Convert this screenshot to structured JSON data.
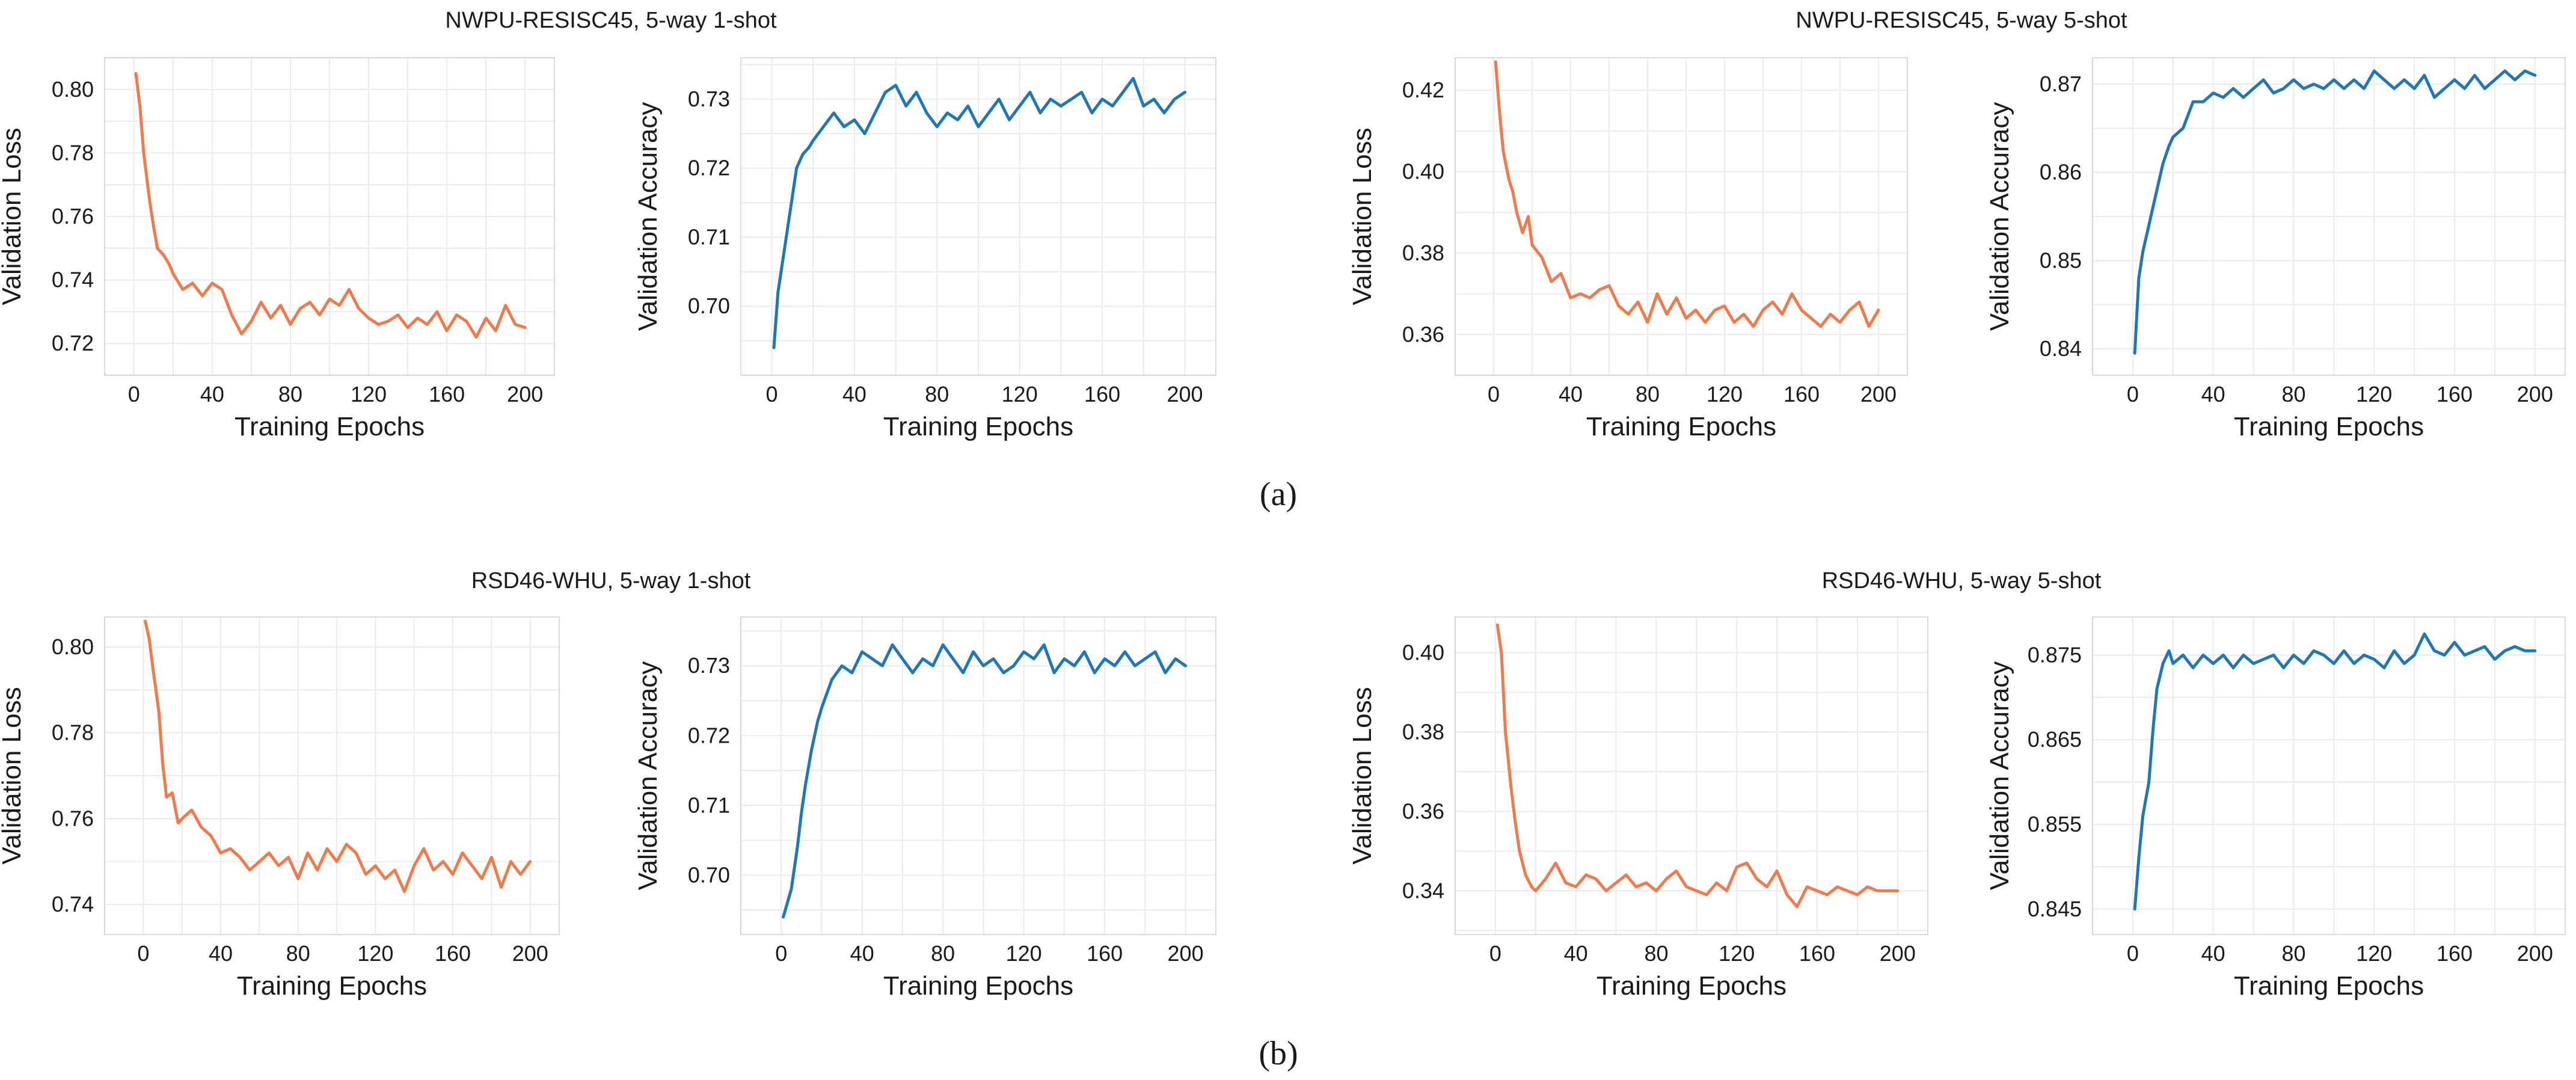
{
  "colors": {
    "loss": "#f07a4b",
    "accuracy": "#1f77b4",
    "grid": "#ebebeb"
  },
  "groups": [
    {
      "title": "NWPU-RESISC45, 5-way 1-shot"
    },
    {
      "title": "NWPU-RESISC45, 5-way 5-shot"
    },
    {
      "title": "RSD46-WHU, 5-way 1-shot"
    },
    {
      "title": "RSD46-WHU, 5-way 5-shot"
    }
  ],
  "captions": [
    "(a)",
    "(b)"
  ],
  "chart_data": [
    {
      "type": "line",
      "group": 0,
      "series_kind": "loss",
      "title": "",
      "xlabel": "Training Epochs",
      "ylabel": "Validation Loss",
      "xlim": [
        -15,
        215
      ],
      "ylim": [
        0.71,
        0.81
      ],
      "xticks": [
        0,
        40,
        80,
        120,
        160,
        200
      ],
      "xtick_labels": [
        "0",
        "40",
        "80",
        "120",
        "160",
        "200"
      ],
      "yticks": [
        0.72,
        0.74,
        0.76,
        0.78,
        0.8
      ],
      "ytick_labels": [
        "0.72",
        "0.74",
        "0.76",
        "0.78",
        "0.80"
      ],
      "x": [
        1,
        3,
        5,
        8,
        10,
        12,
        15,
        18,
        20,
        25,
        30,
        35,
        40,
        45,
        50,
        55,
        60,
        65,
        70,
        75,
        80,
        85,
        90,
        95,
        100,
        105,
        110,
        115,
        120,
        125,
        130,
        135,
        140,
        145,
        150,
        155,
        160,
        165,
        170,
        175,
        180,
        185,
        190,
        195,
        200
      ],
      "y": [
        0.805,
        0.795,
        0.78,
        0.765,
        0.757,
        0.75,
        0.748,
        0.745,
        0.742,
        0.737,
        0.739,
        0.735,
        0.739,
        0.737,
        0.729,
        0.723,
        0.727,
        0.733,
        0.728,
        0.732,
        0.726,
        0.731,
        0.733,
        0.729,
        0.734,
        0.732,
        0.737,
        0.731,
        0.728,
        0.726,
        0.727,
        0.729,
        0.725,
        0.728,
        0.726,
        0.73,
        0.724,
        0.729,
        0.727,
        0.722,
        0.728,
        0.724,
        0.732,
        0.726,
        0.725
      ]
    },
    {
      "type": "line",
      "group": 0,
      "series_kind": "accuracy",
      "title": "",
      "xlabel": "Training Epochs",
      "ylabel": "Validation Accuracy",
      "xlim": [
        -15,
        215
      ],
      "ylim": [
        0.69,
        0.736
      ],
      "xticks": [
        0,
        40,
        80,
        120,
        160,
        200
      ],
      "xtick_labels": [
        "0",
        "40",
        "80",
        "120",
        "160",
        "200"
      ],
      "yticks": [
        0.7,
        0.71,
        0.72,
        0.73
      ],
      "ytick_labels": [
        "0.70",
        "0.71",
        "0.72",
        "0.73"
      ],
      "x": [
        1,
        3,
        5,
        8,
        10,
        12,
        15,
        18,
        20,
        25,
        30,
        35,
        40,
        45,
        50,
        55,
        60,
        65,
        70,
        75,
        80,
        85,
        90,
        95,
        100,
        105,
        110,
        115,
        120,
        125,
        130,
        135,
        140,
        145,
        150,
        155,
        160,
        165,
        170,
        175,
        180,
        185,
        190,
        195,
        200
      ],
      "y": [
        0.694,
        0.702,
        0.706,
        0.712,
        0.716,
        0.72,
        0.722,
        0.723,
        0.724,
        0.726,
        0.728,
        0.726,
        0.727,
        0.725,
        0.728,
        0.731,
        0.732,
        0.729,
        0.731,
        0.728,
        0.726,
        0.728,
        0.727,
        0.729,
        0.726,
        0.728,
        0.73,
        0.727,
        0.729,
        0.731,
        0.728,
        0.73,
        0.729,
        0.73,
        0.731,
        0.728,
        0.73,
        0.729,
        0.731,
        0.733,
        0.729,
        0.73,
        0.728,
        0.73,
        0.731
      ]
    },
    {
      "type": "line",
      "group": 1,
      "series_kind": "loss",
      "title": "",
      "xlabel": "Training Epochs",
      "ylabel": "Validation Loss",
      "xlim": [
        -20,
        215
      ],
      "ylim": [
        0.35,
        0.428
      ],
      "xticks": [
        0,
        40,
        80,
        120,
        160,
        200
      ],
      "xtick_labels": [
        "0",
        "40",
        "80",
        "120",
        "160",
        "200"
      ],
      "yticks": [
        0.36,
        0.38,
        0.4,
        0.42
      ],
      "ytick_labels": [
        "0.36",
        "0.38",
        "0.40",
        "0.42"
      ],
      "x": [
        1,
        3,
        5,
        8,
        10,
        12,
        15,
        18,
        20,
        25,
        30,
        35,
        40,
        45,
        50,
        55,
        60,
        65,
        70,
        75,
        80,
        85,
        90,
        95,
        100,
        105,
        110,
        115,
        120,
        125,
        130,
        135,
        140,
        145,
        150,
        155,
        160,
        165,
        170,
        175,
        180,
        185,
        190,
        195,
        200
      ],
      "y": [
        0.427,
        0.415,
        0.405,
        0.398,
        0.395,
        0.39,
        0.385,
        0.389,
        0.382,
        0.379,
        0.373,
        0.375,
        0.369,
        0.37,
        0.369,
        0.371,
        0.372,
        0.367,
        0.365,
        0.368,
        0.363,
        0.37,
        0.365,
        0.369,
        0.364,
        0.366,
        0.363,
        0.366,
        0.367,
        0.363,
        0.365,
        0.362,
        0.366,
        0.368,
        0.365,
        0.37,
        0.366,
        0.364,
        0.362,
        0.365,
        0.363,
        0.366,
        0.368,
        0.362,
        0.366
      ]
    },
    {
      "type": "line",
      "group": 1,
      "series_kind": "accuracy",
      "title": "",
      "xlabel": "Training Epochs",
      "ylabel": "Validation Accuracy",
      "xlim": [
        -20,
        215
      ],
      "ylim": [
        0.837,
        0.873
      ],
      "xticks": [
        0,
        40,
        80,
        120,
        160,
        200
      ],
      "xtick_labels": [
        "0",
        "40",
        "80",
        "120",
        "160",
        "200"
      ],
      "yticks": [
        0.84,
        0.85,
        0.86,
        0.87
      ],
      "ytick_labels": [
        "0.84",
        "0.85",
        "0.86",
        "0.87"
      ],
      "x": [
        1,
        3,
        5,
        8,
        10,
        12,
        15,
        18,
        20,
        25,
        30,
        35,
        40,
        45,
        50,
        55,
        60,
        65,
        70,
        75,
        80,
        85,
        90,
        95,
        100,
        105,
        110,
        115,
        120,
        125,
        130,
        135,
        140,
        145,
        150,
        155,
        160,
        165,
        170,
        175,
        180,
        185,
        190,
        195,
        200
      ],
      "y": [
        0.8395,
        0.848,
        0.851,
        0.854,
        0.856,
        0.858,
        0.861,
        0.863,
        0.864,
        0.865,
        0.868,
        0.868,
        0.869,
        0.8685,
        0.8695,
        0.8685,
        0.8695,
        0.8705,
        0.869,
        0.8695,
        0.8705,
        0.8695,
        0.87,
        0.8695,
        0.8705,
        0.8695,
        0.8705,
        0.8695,
        0.8715,
        0.8705,
        0.8695,
        0.8705,
        0.8695,
        0.871,
        0.8685,
        0.8695,
        0.8705,
        0.8695,
        0.871,
        0.8695,
        0.8705,
        0.8715,
        0.8705,
        0.8715,
        0.871
      ]
    },
    {
      "type": "line",
      "group": 2,
      "series_kind": "loss",
      "title": "",
      "xlabel": "Training Epochs",
      "ylabel": "Validation Loss",
      "xlim": [
        -20,
        215
      ],
      "ylim": [
        0.733,
        0.807
      ],
      "xticks": [
        0,
        40,
        80,
        120,
        160,
        200
      ],
      "xtick_labels": [
        "0",
        "40",
        "80",
        "120",
        "160",
        "200"
      ],
      "yticks": [
        0.74,
        0.76,
        0.78,
        0.8
      ],
      "ytick_labels": [
        "0.74",
        "0.76",
        "0.78",
        "0.80"
      ],
      "x": [
        1,
        3,
        5,
        8,
        10,
        12,
        15,
        18,
        20,
        25,
        30,
        35,
        40,
        45,
        50,
        55,
        60,
        65,
        70,
        75,
        80,
        85,
        90,
        95,
        100,
        105,
        110,
        115,
        120,
        125,
        130,
        135,
        140,
        145,
        150,
        155,
        160,
        165,
        170,
        175,
        180,
        185,
        190,
        195,
        200
      ],
      "y": [
        0.806,
        0.802,
        0.795,
        0.785,
        0.773,
        0.765,
        0.766,
        0.759,
        0.76,
        0.762,
        0.758,
        0.756,
        0.752,
        0.753,
        0.751,
        0.748,
        0.75,
        0.752,
        0.749,
        0.751,
        0.746,
        0.752,
        0.748,
        0.753,
        0.75,
        0.754,
        0.752,
        0.747,
        0.749,
        0.746,
        0.748,
        0.743,
        0.749,
        0.753,
        0.748,
        0.75,
        0.747,
        0.752,
        0.749,
        0.746,
        0.751,
        0.744,
        0.75,
        0.747,
        0.75
      ]
    },
    {
      "type": "line",
      "group": 2,
      "series_kind": "accuracy",
      "title": "",
      "xlabel": "Training Epochs",
      "ylabel": "Validation Accuracy",
      "xlim": [
        -20,
        215
      ],
      "ylim": [
        0.6915,
        0.737
      ],
      "xticks": [
        0,
        40,
        80,
        120,
        160,
        200
      ],
      "xtick_labels": [
        "0",
        "40",
        "80",
        "120",
        "160",
        "200"
      ],
      "yticks": [
        0.7,
        0.71,
        0.72,
        0.73
      ],
      "ytick_labels": [
        "0.70",
        "0.71",
        "0.72",
        "0.73"
      ],
      "x": [
        1,
        3,
        5,
        8,
        10,
        12,
        15,
        18,
        20,
        25,
        30,
        35,
        40,
        45,
        50,
        55,
        60,
        65,
        70,
        75,
        80,
        85,
        90,
        95,
        100,
        105,
        110,
        115,
        120,
        125,
        130,
        135,
        140,
        145,
        150,
        155,
        160,
        165,
        170,
        175,
        180,
        185,
        190,
        195,
        200
      ],
      "y": [
        0.694,
        0.696,
        0.698,
        0.704,
        0.709,
        0.713,
        0.718,
        0.722,
        0.724,
        0.728,
        0.73,
        0.729,
        0.732,
        0.731,
        0.73,
        0.733,
        0.731,
        0.729,
        0.731,
        0.73,
        0.733,
        0.731,
        0.729,
        0.732,
        0.73,
        0.731,
        0.729,
        0.73,
        0.732,
        0.731,
        0.733,
        0.729,
        0.731,
        0.73,
        0.732,
        0.729,
        0.731,
        0.73,
        0.732,
        0.73,
        0.731,
        0.732,
        0.729,
        0.731,
        0.73
      ]
    },
    {
      "type": "line",
      "group": 3,
      "series_kind": "loss",
      "title": "",
      "xlabel": "Training Epochs",
      "ylabel": "Validation Loss",
      "xlim": [
        -20,
        215
      ],
      "ylim": [
        0.329,
        0.409
      ],
      "xticks": [
        0,
        40,
        80,
        120,
        160,
        200
      ],
      "xtick_labels": [
        "0",
        "40",
        "80",
        "120",
        "160",
        "200"
      ],
      "yticks": [
        0.34,
        0.36,
        0.38,
        0.4
      ],
      "ytick_labels": [
        "0.34",
        "0.36",
        "0.38",
        "0.40"
      ],
      "x": [
        1,
        3,
        5,
        8,
        10,
        12,
        15,
        18,
        20,
        25,
        30,
        35,
        40,
        45,
        50,
        55,
        60,
        65,
        70,
        75,
        80,
        85,
        90,
        95,
        100,
        105,
        110,
        115,
        120,
        125,
        130,
        135,
        140,
        145,
        150,
        155,
        160,
        165,
        170,
        175,
        180,
        185,
        190,
        195,
        200
      ],
      "y": [
        0.407,
        0.4,
        0.38,
        0.365,
        0.357,
        0.35,
        0.344,
        0.341,
        0.34,
        0.343,
        0.347,
        0.342,
        0.341,
        0.344,
        0.343,
        0.34,
        0.342,
        0.344,
        0.341,
        0.342,
        0.34,
        0.343,
        0.345,
        0.341,
        0.34,
        0.339,
        0.342,
        0.34,
        0.346,
        0.347,
        0.343,
        0.341,
        0.345,
        0.339,
        0.336,
        0.341,
        0.34,
        0.339,
        0.341,
        0.34,
        0.339,
        0.341,
        0.34,
        0.34,
        0.34
      ]
    },
    {
      "type": "line",
      "group": 3,
      "series_kind": "accuracy",
      "title": "",
      "xlabel": "Training Epochs",
      "ylabel": "Validation Accuracy",
      "xlim": [
        -20,
        215
      ],
      "ylim": [
        0.842,
        0.8795
      ],
      "xticks": [
        0,
        40,
        80,
        120,
        160,
        200
      ],
      "xtick_labels": [
        "0",
        "40",
        "80",
        "120",
        "160",
        "200"
      ],
      "yticks": [
        0.845,
        0.855,
        0.865,
        0.875
      ],
      "ytick_labels": [
        "0.845",
        "0.855",
        "0.865",
        "0.875"
      ],
      "x": [
        1,
        3,
        5,
        8,
        10,
        12,
        15,
        18,
        20,
        25,
        30,
        35,
        40,
        45,
        50,
        55,
        60,
        65,
        70,
        75,
        80,
        85,
        90,
        95,
        100,
        105,
        110,
        115,
        120,
        125,
        130,
        135,
        140,
        145,
        150,
        155,
        160,
        165,
        170,
        175,
        180,
        185,
        190,
        195,
        200
      ],
      "y": [
        0.845,
        0.851,
        0.856,
        0.86,
        0.866,
        0.871,
        0.874,
        0.8755,
        0.874,
        0.875,
        0.8735,
        0.875,
        0.874,
        0.875,
        0.8735,
        0.875,
        0.874,
        0.8745,
        0.875,
        0.8735,
        0.875,
        0.874,
        0.8755,
        0.875,
        0.874,
        0.8755,
        0.874,
        0.875,
        0.8745,
        0.8735,
        0.8755,
        0.874,
        0.875,
        0.8775,
        0.8755,
        0.875,
        0.8765,
        0.875,
        0.8755,
        0.876,
        0.8745,
        0.8755,
        0.876,
        0.8755,
        0.8755
      ]
    }
  ]
}
